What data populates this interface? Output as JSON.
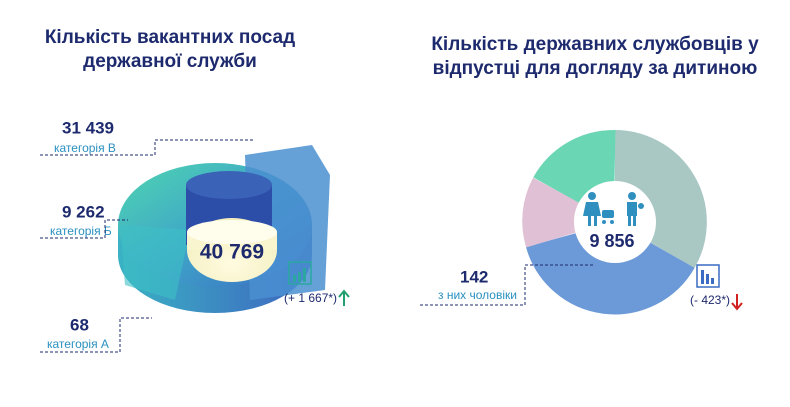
{
  "left": {
    "title": [
      "Кількість вакантних посад",
      "державної служби"
    ],
    "total": "40 769",
    "items": [
      {
        "value": "31 439",
        "label": "категорія В"
      },
      {
        "value": "9 262",
        "label": "категорія Б"
      },
      {
        "value": "68",
        "label": "категорія А"
      }
    ],
    "change": "(+ 1 667*)"
  },
  "right": {
    "title": [
      "Кількість державних службовців у",
      "відпустці для догляду за дитиною"
    ],
    "total": "9 856",
    "items": [
      {
        "value": "142",
        "label": "з них чоловіки"
      }
    ],
    "change": "(- 423*)"
  }
}
